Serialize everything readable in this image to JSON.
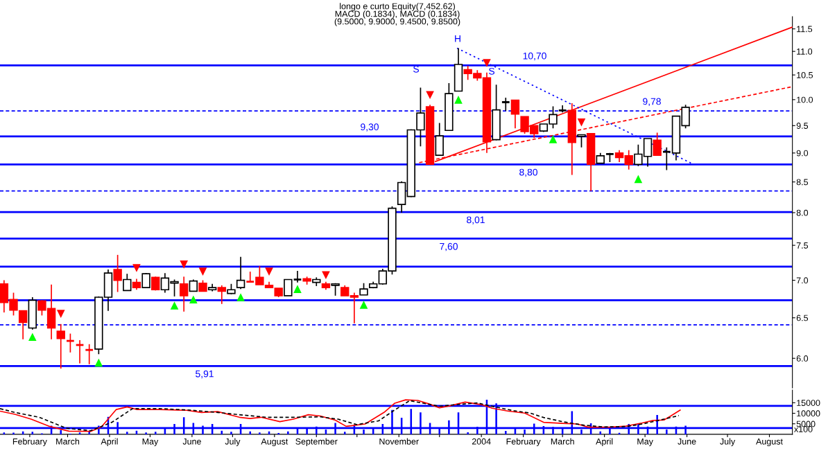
{
  "chart_data": [
    {
      "type": "candlestick",
      "log": "y",
      "tick_labels": "y",
      "grid": false,
      "legend": false,
      "xlim": [
        "2003-01-10",
        "2004-08-18"
      ],
      "ylim": [
        5.66,
        11.78
      ],
      "yticks": [
        {
          "value": 6,
          "label": "6.0"
        },
        6.5,
        {
          "value": 7,
          "label": "7.0"
        },
        7.5,
        {
          "value": 8,
          "label": "8.0"
        },
        8.5,
        {
          "value": 9,
          "label": "9.0"
        },
        9.5,
        {
          "value": 10,
          "label": "10.0"
        },
        10.5,
        {
          "value": 11,
          "label": "11.0"
        },
        11.5
      ],
      "x": [
        "2003-01-13",
        "2003-01-20",
        "2003-01-27",
        "2003-02-03",
        "2003-02-10",
        "2003-02-17",
        "2003-02-24",
        "2003-03-03",
        "2003-03-10",
        "2003-03-17",
        "2003-03-24",
        "2003-03-31",
        "2003-04-07",
        "2003-04-14",
        "2003-04-21",
        "2003-04-28",
        "2003-05-05",
        "2003-05-12",
        "2003-05-19",
        "2003-05-26",
        "2003-06-02",
        "2003-06-09",
        "2003-06-16",
        "2003-06-23",
        "2003-06-30",
        "2003-07-07",
        "2003-07-14",
        "2003-07-21",
        "2003-07-28",
        "2003-08-04",
        "2003-08-11",
        "2003-08-18",
        "2003-08-25",
        "2003-09-01",
        "2003-09-08",
        "2003-09-15",
        "2003-09-22",
        "2003-09-29",
        "2003-10-06",
        "2003-10-13",
        "2003-10-20",
        "2003-10-27",
        "2003-11-03",
        "2003-11-10",
        "2003-11-17",
        "2003-11-24",
        "2003-12-01",
        "2003-12-08",
        "2003-12-15",
        "2003-12-22",
        "2003-12-29",
        "2004-01-05",
        "2004-01-12",
        "2004-01-19",
        "2004-01-26",
        "2004-02-02",
        "2004-02-09",
        "2004-02-16",
        "2004-02-23",
        "2004-03-01",
        "2004-03-08",
        "2004-03-15",
        "2004-03-22",
        "2004-03-29",
        "2004-04-05",
        "2004-04-12",
        "2004-04-19",
        "2004-04-26",
        "2004-05-03",
        "2004-05-10",
        "2004-05-17",
        "2004-05-24",
        "2004-05-31"
      ],
      "ohlc": [
        [
          6.95,
          7.0,
          6.57,
          6.7
        ],
        [
          6.74,
          6.83,
          6.53,
          6.6
        ],
        [
          6.59,
          6.59,
          6.23,
          6.44
        ],
        [
          6.37,
          6.77,
          6.35,
          6.73
        ],
        [
          6.72,
          6.73,
          6.53,
          6.6
        ],
        [
          6.62,
          6.94,
          6.23,
          6.37
        ],
        [
          6.33,
          6.42,
          5.88,
          6.24
        ],
        [
          6.21,
          6.3,
          6.07,
          6.21
        ],
        [
          6.16,
          6.22,
          5.94,
          6.16
        ],
        [
          6.1,
          6.17,
          5.93,
          6.1
        ],
        [
          6.11,
          6.78,
          6.05,
          6.77
        ],
        [
          6.77,
          7.15,
          6.59,
          7.1
        ],
        [
          7.15,
          7.36,
          6.84,
          7.0
        ],
        [
          6.86,
          7.09,
          6.86,
          7.01
        ],
        [
          6.97,
          7.02,
          6.87,
          6.9
        ],
        [
          6.9,
          7.1,
          6.9,
          7.09
        ],
        [
          7.04,
          7.05,
          6.86,
          6.87
        ],
        [
          6.87,
          7.1,
          6.83,
          7.03
        ],
        [
          6.96,
          7.01,
          6.78,
          6.98
        ],
        [
          6.95,
          7.05,
          6.58,
          6.79
        ],
        [
          6.85,
          7.01,
          6.85,
          6.99
        ],
        [
          6.96,
          7.0,
          6.85,
          6.85
        ],
        [
          6.87,
          6.95,
          6.85,
          6.9
        ],
        [
          6.9,
          6.93,
          6.68,
          6.85
        ],
        [
          6.82,
          6.95,
          6.81,
          6.87
        ],
        [
          6.9,
          7.33,
          6.88,
          7.0
        ],
        [
          6.98,
          7.12,
          6.97,
          6.98
        ],
        [
          7.04,
          7.2,
          6.94,
          6.94
        ],
        [
          6.93,
          6.98,
          6.89,
          6.9
        ],
        [
          6.89,
          6.89,
          6.77,
          6.79
        ],
        [
          6.79,
          7.01,
          6.79,
          7.01
        ],
        [
          7.01,
          7.13,
          6.97,
          7.01
        ],
        [
          7.02,
          7.05,
          6.94,
          6.99
        ],
        [
          6.97,
          7.04,
          6.92,
          7.01
        ],
        [
          6.95,
          6.98,
          6.87,
          6.9
        ],
        [
          6.93,
          6.96,
          6.79,
          6.95
        ],
        [
          6.9,
          6.93,
          6.79,
          6.79
        ],
        [
          6.79,
          6.83,
          6.43,
          6.77
        ],
        [
          6.8,
          6.96,
          6.8,
          6.88
        ],
        [
          6.9,
          6.98,
          6.89,
          6.95
        ],
        [
          6.95,
          7.16,
          6.94,
          7.13
        ],
        [
          7.13,
          8.1,
          7.08,
          8.07
        ],
        [
          8.13,
          8.51,
          8.0,
          8.49
        ],
        [
          8.26,
          9.43,
          8.25,
          9.42
        ],
        [
          9.42,
          10.24,
          9.12,
          9.74
        ],
        [
          9.86,
          9.9,
          8.8,
          8.8
        ],
        [
          8.96,
          9.55,
          8.96,
          9.31
        ],
        [
          9.41,
          10.33,
          9.41,
          10.12
        ],
        [
          10.17,
          11.07,
          10.17,
          10.72
        ],
        [
          10.61,
          10.69,
          10.4,
          10.53
        ],
        [
          10.53,
          10.6,
          10.38,
          10.44
        ],
        [
          10.44,
          10.55,
          9.0,
          9.2
        ],
        [
          9.24,
          10.3,
          9.23,
          9.8
        ],
        [
          9.95,
          10.04,
          9.78,
          9.95
        ],
        [
          9.99,
          9.99,
          9.45,
          9.72
        ],
        [
          9.67,
          9.67,
          9.35,
          9.39
        ],
        [
          9.5,
          9.5,
          9.27,
          9.35
        ],
        [
          9.4,
          9.53,
          9.38,
          9.53
        ],
        [
          9.53,
          9.87,
          9.45,
          9.71
        ],
        [
          9.79,
          9.89,
          9.75,
          9.79
        ],
        [
          9.79,
          9.93,
          8.62,
          9.19
        ],
        [
          9.3,
          9.33,
          9.1,
          9.33
        ],
        [
          9.35,
          9.35,
          8.35,
          8.8
        ],
        [
          8.82,
          9.0,
          8.82,
          8.95
        ],
        [
          8.98,
          9.0,
          8.84,
          8.98
        ],
        [
          9.0,
          9.05,
          8.84,
          8.92
        ],
        [
          8.95,
          9.05,
          8.71,
          8.8
        ],
        [
          8.8,
          9.15,
          8.77,
          8.98
        ],
        [
          8.94,
          9.26,
          8.76,
          9.26
        ],
        [
          9.23,
          9.37,
          8.96,
          8.96
        ],
        [
          9.02,
          9.1,
          8.7,
          9.02
        ],
        [
          9.0,
          9.68,
          8.87,
          9.68
        ],
        [
          9.5,
          9.9,
          9.45,
          9.85
        ]
      ],
      "colors": [
        "#ff0000",
        "#ff0000",
        "#ff0000",
        "#ffffff",
        "#ff0000",
        "#ff0000",
        "#ff0000",
        "#ff0000",
        "#ff0000",
        "#ff0000",
        "#ffffff",
        "#ffffff",
        "#ff0000",
        "#ffffff",
        "#ff0000",
        "#ffffff",
        "#ff0000",
        "#ffffff",
        "#ffffff",
        "#ff0000",
        "#ffffff",
        "#ff0000",
        "#ffffff",
        "#ff0000",
        "#ffffff",
        "#ffffff",
        "#ff0000",
        "#ff0000",
        "#ff0000",
        "#ff0000",
        "#ffffff",
        "#000000",
        "#ff0000",
        "#ffffff",
        "#ff0000",
        "#ffffff",
        "#ff0000",
        "#ff0000",
        "#ffffff",
        "#ffffff",
        "#ffffff",
        "#ffffff",
        "#ffffff",
        "#ffffff",
        "#ffffff",
        "#ff0000",
        "#ffffff",
        "#ffffff",
        "#ffffff",
        "#ff0000",
        "#ff0000",
        "#ff0000",
        "#ffffff",
        "#000000",
        "#ff0000",
        "#ff0000",
        "#ff0000",
        "#ffffff",
        "#ffffff",
        "#000000",
        "#ff0000",
        "#ffffff",
        "#ff0000",
        "#ffffff",
        "#000000",
        "#ff0000",
        "#ff0000",
        "#ffffff",
        "#ffffff",
        "#ff0000",
        "#000000",
        "#ffffff",
        "#ffffff"
      ],
      "series": [
        {
          "type": "line",
          "color": "#ff0000",
          "line_style": "solid",
          "x": [
            "2003-11-28",
            "2004-08-18"
          ],
          "values": [
            8.85,
            11.54
          ]
        },
        {
          "type": "line",
          "color": "#ff0000",
          "line_style": "dashed",
          "x": [
            "2003-11-16",
            "2004-08-18"
          ],
          "values": [
            8.83,
            10.26
          ]
        },
        {
          "type": "line",
          "color": "#0000ff",
          "line_style": "dotted",
          "x": [
            "2003-12-14",
            "2004-06-06"
          ],
          "values": [
            11.07,
            8.8
          ]
        },
        {
          "type": "scatter",
          "color": "#00ff00",
          "marker": "triangle-up",
          "x": [
            "2003-02-03",
            "2003-03-24",
            "2003-05-19",
            "2003-06-02",
            "2003-07-07",
            "2003-08-18",
            "2003-10-06",
            "2003-12-15",
            "2004-02-23",
            "2004-04-26"
          ],
          "values": [
            6.26,
            5.95,
            6.66,
            6.74,
            6.77,
            6.88,
            6.67,
            10.0,
            9.25,
            8.55
          ]
        },
        {
          "type": "scatter",
          "color": "#ff0000",
          "marker": "triangle-down",
          "x": [
            "2003-02-24",
            "2003-04-21",
            "2003-05-26",
            "2003-06-09",
            "2003-07-28",
            "2003-09-08",
            "2003-11-24",
            "2004-01-05",
            "2004-03-15"
          ],
          "values": [
            6.55,
            7.17,
            7.22,
            7.12,
            7.12,
            7.07,
            10.09,
            10.75,
            9.56
          ]
        }
      ],
      "ref_lines": [
        {
          "axis": "y",
          "value": 10.7,
          "color": "#0000ff",
          "line_style": "solid",
          "label": "10,70"
        },
        {
          "axis": "y",
          "value": 9.78,
          "color": "#0000ff",
          "line_style": "dashed",
          "label": "9,78"
        },
        {
          "axis": "y",
          "value": 9.3,
          "color": "#0000ff",
          "line_style": "solid",
          "label": "9,30"
        },
        {
          "axis": "y",
          "value": 8.8,
          "color": "#0000ff",
          "line_style": "solid",
          "label": "8,80"
        },
        {
          "axis": "y",
          "value": 8.35,
          "color": "#0000ff",
          "line_style": "dashed"
        },
        {
          "axis": "y",
          "value": 8.01,
          "color": "#0000ff",
          "line_style": "solid",
          "label": "8,01"
        },
        {
          "axis": "y",
          "value": 7.6,
          "color": "#0000ff",
          "line_style": "solid",
          "label": "7,60"
        },
        {
          "axis": "y",
          "value": 7.19,
          "color": "#0000ff",
          "line_style": "solid"
        },
        {
          "axis": "y",
          "value": 6.73,
          "color": "#0000ff",
          "line_style": "solid"
        },
        {
          "axis": "y",
          "value": 6.41,
          "color": "#0000ff",
          "line_style": "dashed"
        },
        {
          "axis": "y",
          "value": 5.91,
          "color": "#0000ff",
          "line_style": "solid",
          "label": "5,91"
        }
      ],
      "annotations": [
        "longo e curto Equity(7,452.62)",
        "MACD (0.1834), MACD (0.1834)",
        "(9.5000, 9.9000, 9.4500, 9.8500)",
        "H",
        "S",
        "S"
      ]
    },
    {
      "type": "bar",
      "grid": false,
      "legend": false,
      "color": "#0000ff",
      "xlim": [
        "2003-01-10",
        "2004-08-18"
      ],
      "ylim": [
        0,
        21000
      ],
      "yticks": [
        5000,
        10000,
        15000
      ],
      "xticks": [
        {
          "value": "2003-02-01",
          "label": "February"
        },
        {
          "value": "2003-03-01",
          "label": "March"
        },
        {
          "value": "2003-04-01",
          "label": "April"
        },
        {
          "value": "2003-05-01",
          "label": "May"
        },
        {
          "value": "2003-06-01",
          "label": "June"
        },
        {
          "value": "2003-07-01",
          "label": "July"
        },
        {
          "value": "2003-08-01",
          "label": "August"
        },
        {
          "value": "2003-09-01",
          "label": "September"
        },
        {
          "value": "2003-10-01",
          "label": null
        },
        {
          "value": "2003-11-01",
          "label": "November"
        },
        {
          "value": "2003-12-01",
          "label": null
        },
        {
          "value": "2004-01-01",
          "label": "2004"
        },
        {
          "value": "2004-02-01",
          "label": "February"
        },
        {
          "value": "2004-03-01",
          "label": "March"
        },
        {
          "value": "2004-04-01",
          "label": "April"
        },
        {
          "value": "2004-05-01",
          "label": "May"
        },
        {
          "value": "2004-06-01",
          "label": "June"
        },
        {
          "value": "2004-07-01",
          "label": "July"
        },
        {
          "value": "2004-08-01",
          "label": "August"
        }
      ],
      "x": [
        "2003-01-13",
        "2003-01-20",
        "2003-01-27",
        "2003-02-03",
        "2003-02-10",
        "2003-02-17",
        "2003-02-24",
        "2003-03-03",
        "2003-03-10",
        "2003-03-17",
        "2003-03-24",
        "2003-03-31",
        "2003-04-07",
        "2003-04-14",
        "2003-04-21",
        "2003-04-28",
        "2003-05-05",
        "2003-05-12",
        "2003-05-19",
        "2003-05-26",
        "2003-06-02",
        "2003-06-09",
        "2003-06-16",
        "2003-06-23",
        "2003-06-30",
        "2003-07-07",
        "2003-07-14",
        "2003-07-21",
        "2003-07-28",
        "2003-08-04",
        "2003-08-11",
        "2003-08-18",
        "2003-08-25",
        "2003-09-01",
        "2003-09-08",
        "2003-09-15",
        "2003-09-22",
        "2003-09-29",
        "2003-10-06",
        "2003-10-13",
        "2003-10-20",
        "2003-10-27",
        "2003-11-03",
        "2003-11-10",
        "2003-11-17",
        "2003-11-24",
        "2003-12-01",
        "2003-12-08",
        "2003-12-15",
        "2003-12-22",
        "2003-12-29",
        "2004-01-05",
        "2004-01-12",
        "2004-01-19",
        "2004-01-26",
        "2004-02-02",
        "2004-02-09",
        "2004-02-16",
        "2004-02-23",
        "2004-03-01",
        "2004-03-08",
        "2004-03-15",
        "2004-03-22",
        "2004-03-29",
        "2004-04-05",
        "2004-04-12",
        "2004-04-19",
        "2004-04-26",
        "2004-05-03",
        "2004-05-10",
        "2004-05-17",
        "2004-05-24",
        "2004-05-31"
      ],
      "values": [
        900,
        800,
        1400,
        1200,
        500,
        4100,
        2100,
        300,
        900,
        1400,
        4100,
        8300,
        5800,
        1200,
        1700,
        900,
        1200,
        2600,
        4900,
        8100,
        5400,
        4100,
        4900,
        1700,
        1200,
        4900,
        1400,
        900,
        1400,
        600,
        1400,
        3200,
        2800,
        3700,
        2300,
        5400,
        1200,
        4400,
        2300,
        2900,
        4900,
        11600,
        7900,
        12100,
        10400,
        5400,
        2800,
        6600,
        10400,
        1000,
        3600,
        16400,
        14700,
        1600,
        3100,
        2300,
        5100,
        3900,
        3500,
        3100,
        11000,
        2300,
        5200,
        1400,
        2800,
        700,
        4900,
        5200,
        3700,
        9200,
        2300,
        3700,
        4100
      ],
      "series": [
        {
          "type": "line",
          "color": "#ff0000",
          "line_style": "solid",
          "x": [
            "2003-01-10",
            "2003-01-21",
            "2003-02-02",
            "2003-02-16",
            "2003-03-02",
            "2003-03-18",
            "2003-03-26",
            "2003-04-06",
            "2003-04-14",
            "2003-04-21",
            "2003-05-08",
            "2003-05-28",
            "2003-06-08",
            "2003-06-20",
            "2003-07-06",
            "2003-07-14",
            "2003-07-22",
            "2003-08-05",
            "2003-08-15",
            "2003-08-26",
            "2003-09-04",
            "2003-09-15",
            "2003-09-23",
            "2003-10-07",
            "2003-10-21",
            "2003-10-29",
            "2003-11-06",
            "2003-11-15",
            "2003-11-23",
            "2003-12-01",
            "2003-12-09",
            "2003-12-20",
            "2004-01-01",
            "2004-01-09",
            "2004-01-21",
            "2004-02-02",
            "2004-02-16",
            "2004-03-01",
            "2004-03-12",
            "2004-03-20",
            "2004-04-05",
            "2004-04-17",
            "2004-04-29",
            "2004-05-07",
            "2004-05-15",
            "2004-05-20",
            "2004-05-27"
          ],
          "values": [
            11000,
            9500,
            7200,
            3700,
            1500,
            1400,
            3500,
            11800,
            13000,
            11800,
            11800,
            11400,
            10400,
            10800,
            8100,
            7500,
            8100,
            6000,
            7200,
            9300,
            8700,
            6700,
            3800,
            4900,
            10400,
            14800,
            16400,
            16100,
            14500,
            12600,
            13600,
            15300,
            14100,
            12400,
            11000,
            10100,
            5700,
            5200,
            4900,
            3400,
            3400,
            3900,
            5400,
            6600,
            6800,
            8700,
            11500
          ]
        },
        {
          "type": "line",
          "color": "#000000",
          "line_style": "dashed",
          "x": [
            "2003-01-10",
            "2003-01-21",
            "2003-02-08",
            "2003-02-28",
            "2003-03-18",
            "2003-04-03",
            "2003-04-18",
            "2003-05-08",
            "2003-05-28",
            "2003-06-20",
            "2003-07-06",
            "2003-07-26",
            "2003-08-15",
            "2003-09-04",
            "2003-09-17",
            "2003-10-01",
            "2003-10-17",
            "2003-10-29",
            "2003-11-09",
            "2003-12-01",
            "2003-12-13",
            "2003-12-29",
            "2004-01-09",
            "2004-01-25",
            "2004-02-06",
            "2004-02-16",
            "2004-03-01",
            "2004-03-17",
            "2004-04-01",
            "2004-04-17",
            "2004-04-29",
            "2004-05-11",
            "2004-05-26"
          ],
          "values": [
            12200,
            10400,
            8100,
            2900,
            1700,
            5800,
            12200,
            12200,
            11600,
            10400,
            9300,
            8100,
            8100,
            8300,
            7200,
            4600,
            6400,
            11600,
            16000,
            13300,
            14100,
            14900,
            13300,
            11200,
            10100,
            8000,
            6000,
            4300,
            3500,
            3700,
            4900,
            6600,
            8900
          ]
        }
      ],
      "ref_lines": [
        {
          "axis": "y",
          "value": 13500,
          "color": "#0000ff",
          "line_style": "solid"
        },
        {
          "axis": "y",
          "value": 3000,
          "color": "#0000ff",
          "line_style": "solid"
        }
      ],
      "annotations": [
        "x100"
      ]
    }
  ]
}
